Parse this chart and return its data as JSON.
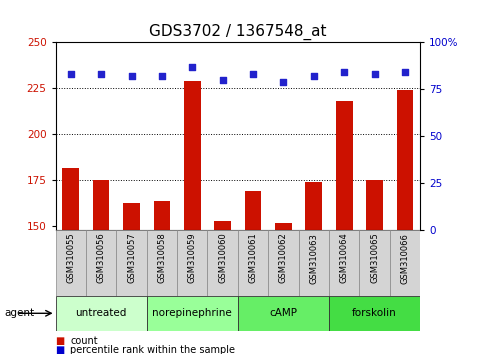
{
  "title": "GDS3702 / 1367548_at",
  "samples": [
    "GSM310055",
    "GSM310056",
    "GSM310057",
    "GSM310058",
    "GSM310059",
    "GSM310060",
    "GSM310061",
    "GSM310062",
    "GSM310063",
    "GSM310064",
    "GSM310065",
    "GSM310066"
  ],
  "count_values": [
    182,
    175,
    163,
    164,
    229,
    153,
    169,
    152,
    174,
    218,
    175,
    224
  ],
  "percentile_values": [
    83,
    83,
    82,
    82,
    87,
    80,
    83,
    79,
    82,
    84,
    83,
    84
  ],
  "ylim_left": [
    148,
    250
  ],
  "ylim_right": [
    0,
    100
  ],
  "yticks_left": [
    150,
    175,
    200,
    225,
    250
  ],
  "yticks_right": [
    0,
    25,
    50,
    75,
    100
  ],
  "bar_color": "#cc1100",
  "dot_color": "#2222cc",
  "bg_color": "#ffffff",
  "agent_groups": [
    {
      "label": "untreated",
      "start": 0,
      "end": 2,
      "color": "#ccffcc"
    },
    {
      "label": "norepinephrine",
      "start": 3,
      "end": 5,
      "color": "#99ff99"
    },
    {
      "label": "cAMP",
      "start": 6,
      "end": 8,
      "color": "#66ee66"
    },
    {
      "label": "forskolin",
      "start": 9,
      "end": 11,
      "color": "#44dd44"
    }
  ],
  "legend_count_label": "count",
  "legend_pct_label": "percentile rank within the sample",
  "agent_label": "agent",
  "ylabel_left_color": "#cc1100",
  "ylabel_right_color": "#0000cc",
  "title_fontsize": 11,
  "tick_fontsize": 7.5,
  "bar_width": 0.55
}
